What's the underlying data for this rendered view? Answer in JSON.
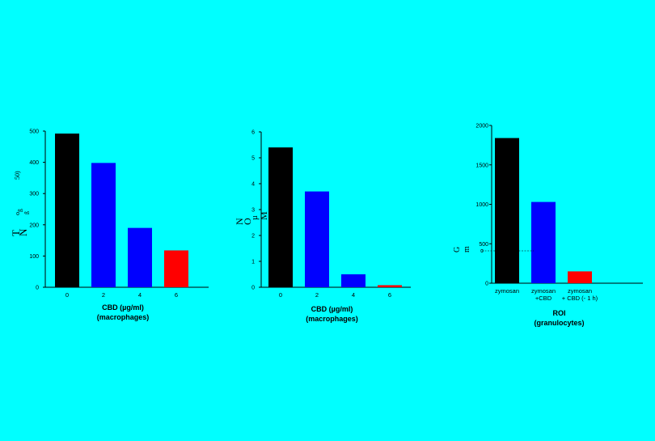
{
  "colors": {
    "background": "#00FFFF",
    "black": "#000000",
    "blue": "#0000FF",
    "red": "#FF0000",
    "axis": "#000000"
  },
  "chart_data": [
    {
      "type": "bar",
      "categories": [
        "0",
        "2",
        "4",
        "6"
      ],
      "values": [
        492,
        398,
        190,
        118
      ],
      "bar_colors": [
        "black",
        "blue",
        "blue",
        "red"
      ],
      "ylim": [
        0,
        500
      ],
      "yticks": [
        "0",
        "100",
        "200",
        "300",
        "400",
        "500"
      ],
      "xlabel": "CBD (µg/ml)",
      "xlabel2": "(macrophages)",
      "ylabel_fragments": [
        "T",
        "N",
        "o",
        "ß",
        "ß",
        "50)"
      ],
      "grid": false
    },
    {
      "type": "bar",
      "categories": [
        "0",
        "2",
        "4",
        "6"
      ],
      "values": [
        5.4,
        3.7,
        0.5,
        0.08
      ],
      "bar_colors": [
        "black",
        "blue",
        "blue",
        "red"
      ],
      "ylim": [
        0,
        6
      ],
      "yticks": [
        "0",
        "1",
        "2",
        "3",
        "4",
        "5",
        "6"
      ],
      "xlabel": "CBD (µg/ml)",
      "xlabel2": "(macrophages)",
      "ylabel_fragments": [
        "N",
        "O",
        "µ",
        "M"
      ],
      "grid": false
    },
    {
      "type": "bar",
      "categories": [
        "zymosan",
        "zymosan\n+CBD",
        "zymosan\n+ CBD (- 1 h)"
      ],
      "values": [
        1840,
        1030,
        150
      ],
      "bar_colors": [
        "black",
        "blue",
        "red"
      ],
      "ylim": [
        0,
        2000
      ],
      "yticks": [
        "0",
        "500",
        "1000",
        "1500",
        "2000"
      ],
      "ytick_labels_display": [
        "0",
        "500",
        "1000",
        "1500",
        "2000"
      ],
      "xlabel": "ROI",
      "xlabel2": "(granulocytes)",
      "ylabel_fragments": [
        "G",
        "m",
        "o"
      ],
      "grid": false
    }
  ]
}
